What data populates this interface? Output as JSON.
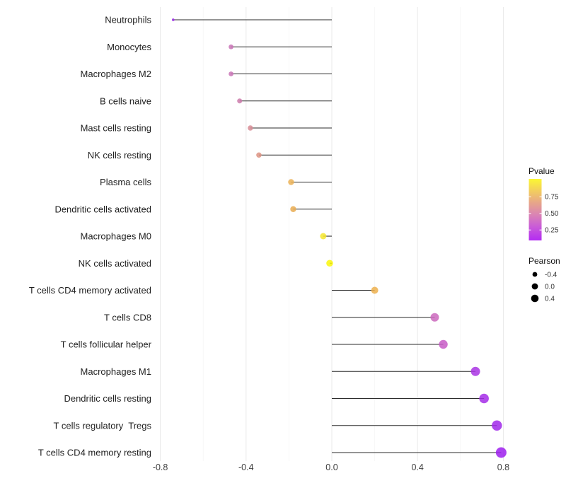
{
  "chart_data": {
    "type": "scatter",
    "subtype": "lollipop",
    "title": "",
    "xlabel": "",
    "ylabel": "",
    "background": "#ffffff",
    "grid": true,
    "x_axis": {
      "tick_values": [
        -0.8,
        -0.4,
        0,
        0.4,
        0.8
      ],
      "tick_labels": [
        "-0.8",
        "-0.4",
        "0.0",
        "0.4",
        "0.8"
      ],
      "minor_gridlines": [
        -0.6,
        -0.2,
        0.2,
        0.6
      ],
      "range": [
        -0.82,
        0.87
      ]
    },
    "stem_color": "#2b2b2b",
    "major_grid_color": "#e9e9e9",
    "minor_grid_color": "#f5f5f5",
    "points": [
      {
        "label": "Neutrophils",
        "pearson": -0.74,
        "color": "#9B2BE8",
        "radius": 1.9
      },
      {
        "label": "Monocytes",
        "pearson": -0.47,
        "color": "#C973B6",
        "radius": 3.4
      },
      {
        "label": "Macrophages M2",
        "pearson": -0.47,
        "color": "#C973B6",
        "radius": 3.4
      },
      {
        "label": "B cells naive",
        "pearson": -0.43,
        "color": "#CC7BAC",
        "radius": 3.5
      },
      {
        "label": "Mast cells resting",
        "pearson": -0.38,
        "color": "#D78C95",
        "radius": 3.7
      },
      {
        "label": "NK cells resting",
        "pearson": -0.34,
        "color": "#DD9383",
        "radius": 3.8
      },
      {
        "label": "Plasma cells",
        "pearson": -0.19,
        "color": "#EBB156",
        "radius": 4.2
      },
      {
        "label": "Dendritic cells activated",
        "pearson": -0.18,
        "color": "#E9AB51",
        "radius": 4.2
      },
      {
        "label": "Macrophages M0",
        "pearson": -0.04,
        "color": "#F4E62E",
        "radius": 4.5
      },
      {
        "label": "NK cells activated",
        "pearson": -0.01,
        "color": "#FAF70A",
        "radius": 4.8
      },
      {
        "label": "T cells CD4 memory activated",
        "pearson": 0.2,
        "color": "#EDB04E",
        "radius": 5.0
      },
      {
        "label": "T cells CD8",
        "pearson": 0.48,
        "color": "#CB69BD",
        "radius": 6.0
      },
      {
        "label": "T cells follicular helper",
        "pearson": 0.52,
        "color": "#C75AC6",
        "radius": 6.2
      },
      {
        "label": "Macrophages M1",
        "pearson": 0.67,
        "color": "#A934E4",
        "radius": 6.5
      },
      {
        "label": "Dendritic cells resting",
        "pearson": 0.71,
        "color": "#A52DE8",
        "radius": 6.8
      },
      {
        "label": "T cells regulatory  Tregs",
        "pearson": 0.77,
        "color": "#A028EA",
        "radius": 7.2
      },
      {
        "label": "T cells CD4 memory resting",
        "pearson": 0.79,
        "color": "#9E1FEE",
        "radius": 7.5
      }
    ],
    "legends": {
      "pvalue": {
        "title": "Pvalue",
        "tick_labels": [
          "0.75",
          "0.50",
          "0.25"
        ],
        "gradient_stops": [
          {
            "offset": 0,
            "color": "#FBF733"
          },
          {
            "offset": 0.2,
            "color": "#F2CC60"
          },
          {
            "offset": 0.4,
            "color": "#E6A38C"
          },
          {
            "offset": 0.58,
            "color": "#DA84B4"
          },
          {
            "offset": 0.78,
            "color": "#C95BD8"
          },
          {
            "offset": 1,
            "color": "#B32BF2"
          }
        ]
      },
      "pearson": {
        "title": "Pearson",
        "dot_color": "#000000",
        "items": [
          {
            "label": "-0.4",
            "radius": 3.4
          },
          {
            "label": "0.0",
            "radius": 4.4
          },
          {
            "label": "0.4",
            "radius": 5.3
          }
        ]
      }
    }
  }
}
